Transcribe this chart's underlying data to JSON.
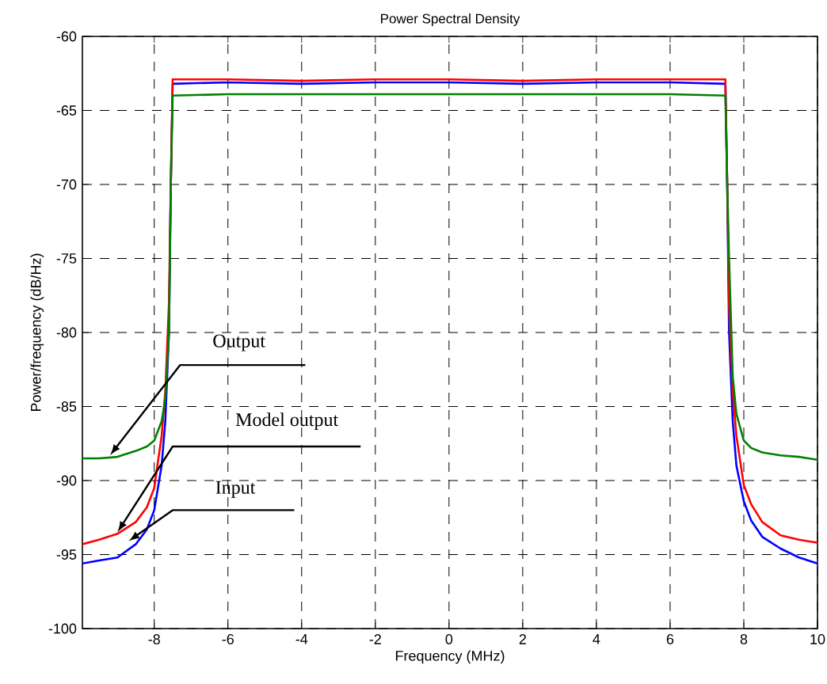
{
  "chart_data": {
    "type": "line",
    "title": "Power Spectral Density",
    "xlabel": "Frequency (MHz)",
    "ylabel": "Power/frequency (dB/Hz)",
    "xlim": [
      -9.95,
      10
    ],
    "ylim": [
      -100,
      -60
    ],
    "xticks": [
      -8,
      -6,
      -4,
      -2,
      0,
      2,
      4,
      6,
      8,
      10
    ],
    "yticks": [
      -100,
      -95,
      -90,
      -85,
      -80,
      -75,
      -70,
      -65,
      -60
    ],
    "grid": true,
    "marker": "none",
    "line_style": "solid",
    "series": [
      {
        "color": "#0000ff",
        "x": [
          -9.95,
          -9.5,
          -9,
          -8.5,
          -8.2,
          -8,
          -7.8,
          -7.7,
          -7.6,
          -7.55,
          -7.5,
          -6,
          -4,
          -2,
          0,
          2,
          4,
          6,
          7.5,
          7.55,
          7.6,
          7.7,
          7.8,
          8,
          8.2,
          8.5,
          9,
          9.5,
          10
        ],
        "values": [
          -95.6,
          -95.4,
          -95.2,
          -94.3,
          -93.3,
          -92,
          -89,
          -86,
          -80,
          -70,
          -63.2,
          -63.1,
          -63.2,
          -63.1,
          -63.1,
          -63.2,
          -63.1,
          -63.1,
          -63.2,
          -70,
          -80,
          -86,
          -89,
          -91.4,
          -92.7,
          -93.8,
          -94.6,
          -95.2,
          -95.6
        ]
      },
      {
        "color": "#ff0000",
        "x": [
          -9.95,
          -9.5,
          -9,
          -8.5,
          -8.2,
          -8,
          -7.8,
          -7.7,
          -7.6,
          -7.55,
          -7.5,
          -6,
          -4,
          -2,
          0,
          2,
          4,
          6,
          7.5,
          7.55,
          7.6,
          7.7,
          7.8,
          8,
          8.2,
          8.5,
          9,
          9.5,
          10
        ],
        "values": [
          -94.3,
          -94,
          -93.6,
          -92.8,
          -91.8,
          -90.5,
          -87,
          -84,
          -78,
          -70,
          -62.9,
          -62.9,
          -63,
          -62.9,
          -62.9,
          -63,
          -62.9,
          -62.9,
          -62.9,
          -70,
          -78,
          -84,
          -87,
          -90.3,
          -91.6,
          -92.8,
          -93.7,
          -94,
          -94.2
        ]
      },
      {
        "color": "#008000",
        "x": [
          -9.95,
          -9.5,
          -9,
          -8.5,
          -8.2,
          -8,
          -7.8,
          -7.7,
          -7.6,
          -7.55,
          -7.5,
          -6,
          -4,
          -2,
          0,
          2,
          4,
          6,
          7.5,
          7.55,
          7.6,
          7.7,
          7.8,
          8,
          8.2,
          8.5,
          9,
          9.5,
          10
        ],
        "values": [
          -88.5,
          -88.5,
          -88.4,
          -88,
          -87.7,
          -87.3,
          -86,
          -84.5,
          -80,
          -70,
          -64,
          -63.9,
          -63.9,
          -63.9,
          -63.9,
          -63.9,
          -63.9,
          -63.9,
          -64,
          -70,
          -75,
          -83,
          -85.5,
          -87.3,
          -87.8,
          -88.1,
          -88.3,
          -88.4,
          -88.6
        ]
      }
    ],
    "annotations": [
      {
        "text": "Output",
        "x": -9.2,
        "y": -88.3
      },
      {
        "text": "Model output",
        "x": -9.0,
        "y": -93.5
      },
      {
        "text": "Input",
        "x": -8.7,
        "y": -94.1
      }
    ]
  }
}
